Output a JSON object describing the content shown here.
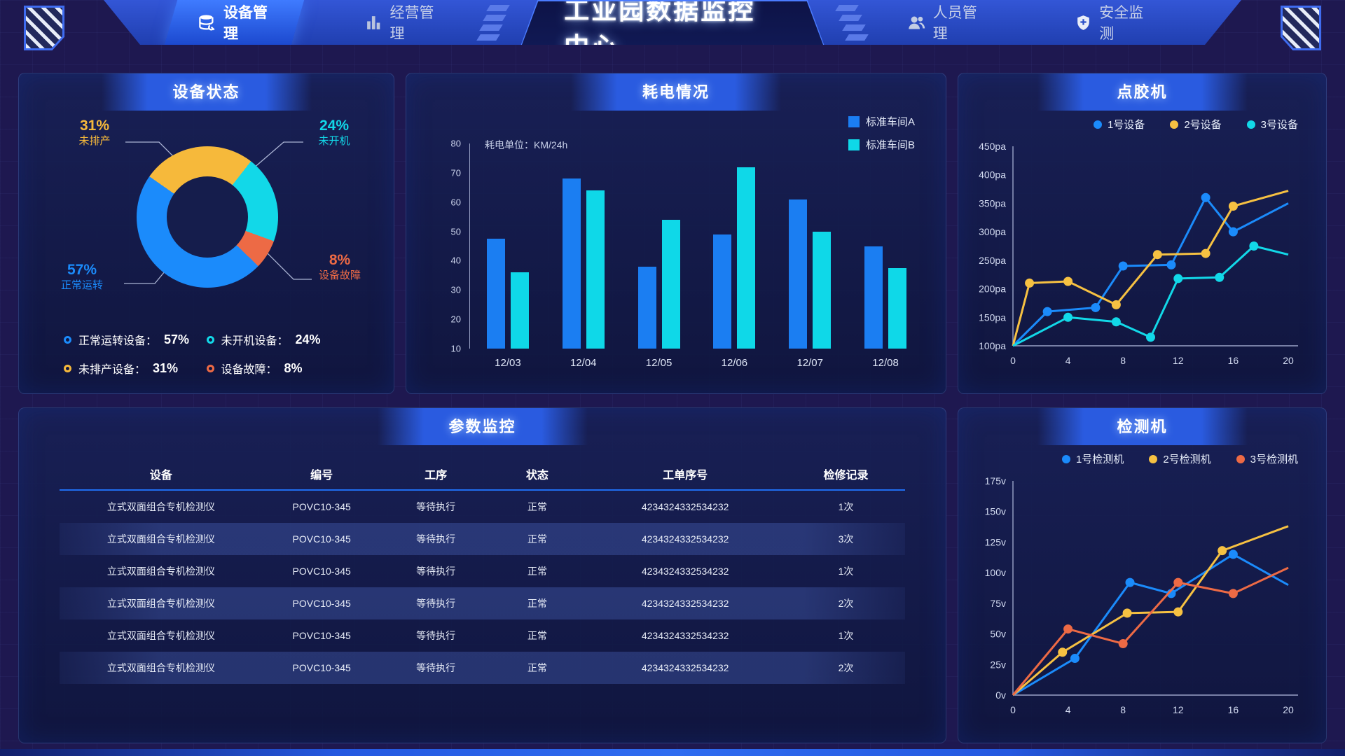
{
  "header": {
    "title": "工业园数据监控中心",
    "tabs": [
      {
        "label": "设备管理",
        "icon": "database-wrench-icon",
        "active": true
      },
      {
        "label": "经营管理",
        "icon": "bar-chart-icon",
        "active": false
      },
      {
        "label": "人员管理",
        "icon": "people-icon",
        "active": false
      },
      {
        "label": "安全监测",
        "icon": "shield-icon",
        "active": false
      }
    ]
  },
  "panels": {
    "device_status": {
      "title": "设备状态",
      "legend": [
        {
          "label": "正常运转设备：",
          "value": "57%",
          "color": "#1b8bfb"
        },
        {
          "label": "未开机设备：",
          "value": "24%",
          "color": "#12d8e8"
        },
        {
          "label": "未排产设备：",
          "value": "31%",
          "color": "#f6b93b"
        },
        {
          "label": "设备故障：",
          "value": "8%",
          "color": "#ed6a45"
        }
      ]
    },
    "power": {
      "title": "耗电情况"
    },
    "dispenser": {
      "title": "点胶机"
    },
    "params": {
      "title": "参数监控",
      "columns": [
        "设备",
        "编号",
        "工序",
        "状态",
        "工单序号",
        "检修记录"
      ],
      "rows": [
        [
          "立式双面组合专机检测仪",
          "POVC10-345",
          "等待执行",
          "正常",
          "4234324332534232",
          "1次"
        ],
        [
          "立式双面组合专机检测仪",
          "POVC10-345",
          "等待执行",
          "正常",
          "4234324332534232",
          "3次"
        ],
        [
          "立式双面组合专机检测仪",
          "POVC10-345",
          "等待执行",
          "正常",
          "4234324332534232",
          "1次"
        ],
        [
          "立式双面组合专机检测仪",
          "POVC10-345",
          "等待执行",
          "正常",
          "4234324332534232",
          "2次"
        ],
        [
          "立式双面组合专机检测仪",
          "POVC10-345",
          "等待执行",
          "正常",
          "4234324332534232",
          "1次"
        ],
        [
          "立式双面组合专机检测仪",
          "POVC10-345",
          "等待执行",
          "正常",
          "4234324332534232",
          "2次"
        ]
      ]
    },
    "detector": {
      "title": "检测机"
    }
  },
  "chart_data": [
    {
      "type": "pie",
      "title": "设备状态",
      "donut": true,
      "start_angle_deg": -55,
      "slices": [
        {
          "label": "未排产",
          "pct": "31%",
          "value": 31,
          "color": "#f6b93b"
        },
        {
          "label": "未开机",
          "pct": "24%",
          "value": 24,
          "color": "#12d8e8"
        },
        {
          "label": "设备故障",
          "pct": "8%",
          "value": 8,
          "color": "#ed6a45"
        },
        {
          "label": "正常运转",
          "pct": "57%",
          "value": 57,
          "color": "#1b8bfb"
        }
      ]
    },
    {
      "type": "bar",
      "title": "耗电情况",
      "unit_note": "耗电单位：KM/24h",
      "categories": [
        "12/03",
        "12/04",
        "12/05",
        "12/06",
        "12/07",
        "12/08"
      ],
      "series": [
        {
          "name": "标准车间A",
          "color": "#1b7ef2",
          "values": [
            47.5,
            68,
            38,
            49,
            61,
            45
          ]
        },
        {
          "name": "标准车间B",
          "color": "#0fd8e8",
          "values": [
            36,
            64,
            54,
            72,
            50,
            37.5
          ]
        }
      ],
      "ylim": [
        10,
        80
      ],
      "ystep": 10,
      "grid": false,
      "legend_position": "top-right"
    },
    {
      "type": "line",
      "title": "点胶机",
      "ylim": [
        100,
        450
      ],
      "ystep": 50,
      "y_suffix": "pa",
      "xlim": [
        0,
        20
      ],
      "xticks": [
        0,
        4,
        8,
        12,
        16,
        20
      ],
      "series": [
        {
          "name": "1号设备",
          "color": "#1b8bfb",
          "points": [
            [
              0,
              100
            ],
            [
              2.5,
              160
            ],
            [
              6,
              167
            ],
            [
              8,
              240
            ],
            [
              11.5,
              242
            ],
            [
              14,
              360
            ],
            [
              16,
              300
            ],
            [
              20,
              350
            ]
          ]
        },
        {
          "name": "2号设备",
          "color": "#f6c142",
          "points": [
            [
              0,
              100
            ],
            [
              1.2,
              210
            ],
            [
              4,
              213
            ],
            [
              7.5,
              172
            ],
            [
              10.5,
              260
            ],
            [
              14,
              262
            ],
            [
              16,
              345
            ],
            [
              20,
              372
            ]
          ]
        },
        {
          "name": "3号设备",
          "color": "#12d8e8",
          "points": [
            [
              0,
              100
            ],
            [
              4,
              150
            ],
            [
              7.5,
              142
            ],
            [
              10,
              115
            ],
            [
              12,
              218
            ],
            [
              15,
              220
            ],
            [
              17.5,
              275
            ],
            [
              20,
              260
            ]
          ]
        }
      ]
    },
    {
      "type": "line",
      "title": "检测机",
      "ylim": [
        0,
        175
      ],
      "ystep": 25,
      "y_suffix": "v",
      "xlim": [
        0,
        20
      ],
      "xticks": [
        0,
        4,
        8,
        12,
        16,
        20
      ],
      "series": [
        {
          "name": "1号检测机",
          "color": "#1b8bfb",
          "points": [
            [
              0,
              0
            ],
            [
              4.5,
              30
            ],
            [
              8.5,
              92
            ],
            [
              11.5,
              83
            ],
            [
              16,
              115
            ],
            [
              20,
              90
            ]
          ]
        },
        {
          "name": "2号检测机",
          "color": "#f6c142",
          "points": [
            [
              0,
              0
            ],
            [
              3.6,
              35
            ],
            [
              8.3,
              67
            ],
            [
              12,
              68
            ],
            [
              15.2,
              118
            ],
            [
              20,
              138
            ]
          ]
        },
        {
          "name": "3号检测机",
          "color": "#ed6a45",
          "points": [
            [
              0,
              0
            ],
            [
              4,
              54
            ],
            [
              8,
              42
            ],
            [
              12,
              92
            ],
            [
              16,
              83
            ],
            [
              20,
              104
            ]
          ]
        }
      ]
    }
  ]
}
